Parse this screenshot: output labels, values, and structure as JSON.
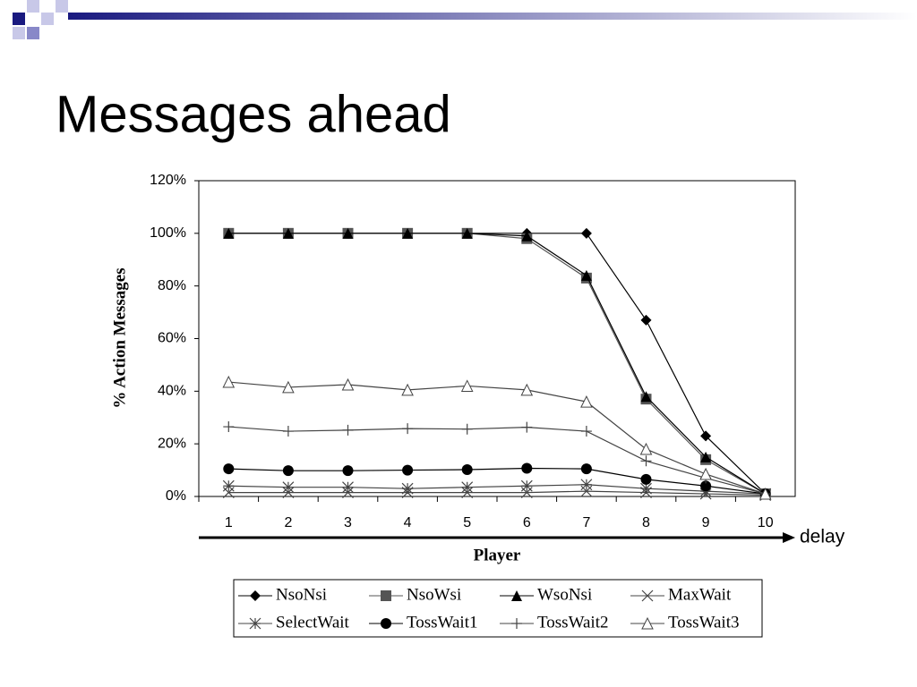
{
  "slide_title": "Messages ahead",
  "chart_data": {
    "type": "line",
    "y_label": "% Action Messages",
    "x_label": "Player",
    "annotation": "delay",
    "categories": [
      "1",
      "2",
      "3",
      "4",
      "5",
      "6",
      "7",
      "8",
      "9",
      "10"
    ],
    "ylim": [
      0,
      120
    ],
    "yticks": [
      {
        "value": 0,
        "label": "0%"
      },
      {
        "value": 20,
        "label": "20%"
      },
      {
        "value": 40,
        "label": "40%"
      },
      {
        "value": 60,
        "label": "60%"
      },
      {
        "value": 80,
        "label": "80%"
      },
      {
        "value": 100,
        "label": "100%"
      },
      {
        "value": 120,
        "label": "120%"
      }
    ],
    "grid": false,
    "series": [
      {
        "name": "NsoNsi",
        "color": "#000000",
        "marker": "diamond",
        "values": [
          100,
          100,
          100,
          100,
          100,
          100,
          100,
          67,
          23,
          1
        ]
      },
      {
        "name": "NsoWsi",
        "color": "#555555",
        "marker": "square",
        "values": [
          100,
          100,
          100,
          100,
          100,
          98,
          83,
          37,
          14,
          1
        ]
      },
      {
        "name": "WsoNsi",
        "color": "#000000",
        "marker": "triangle",
        "values": [
          100,
          100,
          100,
          100,
          100,
          99,
          84,
          38,
          15,
          1
        ]
      },
      {
        "name": "MaxWait",
        "color": "#444444",
        "marker": "x",
        "values": [
          1.5,
          1.5,
          1.5,
          1.5,
          1.5,
          1.5,
          2,
          1.5,
          1,
          0.5
        ]
      },
      {
        "name": "SelectWait",
        "color": "#444444",
        "marker": "asterisk",
        "values": [
          4,
          3.5,
          3.5,
          3,
          3.5,
          4,
          4.5,
          3,
          2,
          1
        ]
      },
      {
        "name": "TossWait1",
        "color": "#000000",
        "marker": "circle",
        "values": [
          10.5,
          9.8,
          9.8,
          10,
          10.2,
          10.7,
          10.5,
          6.5,
          4,
          1
        ]
      },
      {
        "name": "TossWait2",
        "color": "#444444",
        "marker": "plus",
        "values": [
          26.5,
          24.8,
          25.2,
          25.8,
          25.6,
          26.3,
          24.8,
          13.5,
          7,
          1
        ]
      },
      {
        "name": "TossWait3",
        "color": "#444444",
        "marker": "open-triangle",
        "values": [
          43.5,
          41.5,
          42.5,
          40.5,
          42,
          40.5,
          36,
          18,
          8.5,
          1
        ]
      }
    ]
  }
}
